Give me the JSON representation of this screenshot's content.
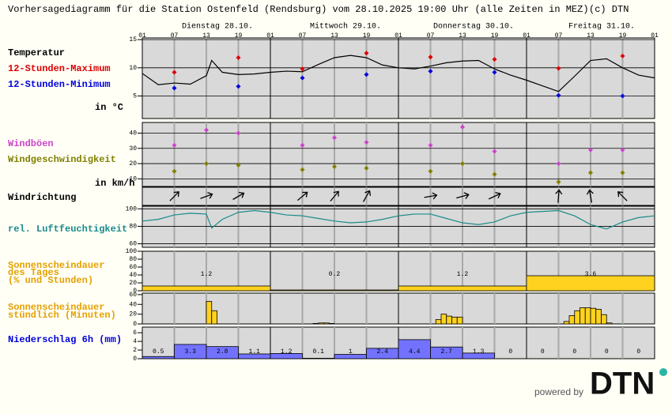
{
  "header": {
    "title": "Vorhersagediagramm für die Station Ostenfeld (Rendsburg) vom 28.10.2025 19:00 Uhr (alle Zeiten in MEZ)",
    "copyright": "(c) DTN"
  },
  "days": [
    "Dienstag 28.10.",
    "Mittwoch 29.10.",
    "Donnerstag 30.10.",
    "Freitag 31.10."
  ],
  "hours": [
    "01",
    "07",
    "13",
    "19"
  ],
  "chart_data": [
    {
      "type": "line",
      "title": "Temperatur",
      "unit_label": "in °C",
      "ylim": [
        1,
        15.3
      ],
      "yticks": [
        5,
        10,
        15
      ],
      "grid": true,
      "series": [
        {
          "color": "#000000",
          "x": [
            0,
            3,
            6,
            9,
            12,
            13,
            15,
            18,
            21,
            24,
            27,
            30,
            33,
            36,
            39,
            42,
            45,
            48,
            51,
            54,
            57,
            60,
            63,
            66,
            69,
            72,
            75,
            78,
            81,
            84,
            87,
            90,
            93,
            96
          ],
          "values": [
            9.0,
            7.0,
            7.3,
            7.1,
            8.6,
            11.3,
            9.2,
            8.8,
            8.9,
            9.2,
            9.4,
            9.3,
            10.6,
            11.8,
            12.2,
            11.8,
            10.5,
            10.0,
            9.8,
            10.3,
            10.9,
            11.2,
            11.3,
            9.8,
            8.7,
            7.8,
            6.8,
            5.8,
            8.5,
            11.3,
            11.6,
            10.0,
            8.7,
            8.2
          ]
        },
        {
          "name": "12-Stunden-Maximum",
          "color": "#dd0000",
          "marker": "diamond",
          "x": [
            6,
            18,
            30,
            42,
            54,
            66,
            78,
            90
          ],
          "values": [
            9.2,
            11.8,
            9.8,
            12.6,
            11.9,
            11.5,
            9.9,
            12.1
          ]
        },
        {
          "name": "12-Stunden-Minimum",
          "color": "#0000dd",
          "marker": "diamond",
          "x": [
            6,
            18,
            30,
            42,
            54,
            66,
            78,
            90
          ],
          "values": [
            6.4,
            6.7,
            8.2,
            8.8,
            9.4,
            9.2,
            5.1,
            5.0
          ]
        }
      ]
    },
    {
      "type": "scatter",
      "unit_label": "in km/h",
      "ylim": [
        5,
        47
      ],
      "yticks": [
        10,
        20,
        30,
        40
      ],
      "grid": true,
      "series": [
        {
          "name": "Windböen",
          "color": "#cc44cc",
          "x": [
            6,
            12,
            18,
            30,
            36,
            42,
            54,
            60,
            66,
            78,
            84,
            90
          ],
          "values": [
            32,
            42,
            40,
            32,
            37,
            34,
            32,
            44,
            28,
            20,
            29,
            29
          ]
        },
        {
          "name": "Windgeschwindigkeit",
          "color": "#808000",
          "x": [
            6,
            12,
            18,
            30,
            36,
            42,
            54,
            60,
            66,
            78,
            84,
            90
          ],
          "values": [
            15,
            20,
            19,
            16,
            18,
            17,
            15,
            20,
            13,
            8,
            14,
            14
          ]
        }
      ]
    },
    {
      "type": "arrows",
      "title": "Windrichtung",
      "x": [
        6,
        12,
        18,
        30,
        36,
        42,
        54,
        60,
        66,
        78,
        84,
        90
      ],
      "values": [
        45,
        70,
        60,
        50,
        40,
        30,
        80,
        75,
        65,
        5,
        350,
        315
      ]
    },
    {
      "type": "line",
      "title": "rel. Luftfeuchtigkeit",
      "color": "#1a8a8a",
      "ylim": [
        56,
        103
      ],
      "yticks": [
        60,
        80,
        100
      ],
      "grid": true,
      "x": [
        0,
        3,
        6,
        9,
        12,
        13,
        15,
        18,
        21,
        24,
        27,
        30,
        33,
        36,
        39,
        42,
        45,
        48,
        51,
        54,
        57,
        60,
        63,
        66,
        69,
        72,
        75,
        78,
        81,
        84,
        87,
        90,
        93,
        96
      ],
      "values": [
        86,
        88,
        93,
        95,
        94,
        78,
        88,
        96,
        98,
        96,
        93,
        92,
        89,
        86,
        84,
        85,
        88,
        92,
        94,
        94,
        89,
        84,
        82,
        85,
        92,
        96,
        97,
        98,
        92,
        82,
        77,
        85,
        90,
        92
      ]
    },
    {
      "type": "bar",
      "title_lines": [
        "Sonnenscheindauer",
        "des Tages",
        "(% und Stunden)"
      ],
      "color": "#ffd21f",
      "ylim": [
        0,
        100
      ],
      "yticks": [
        0,
        20,
        40,
        60,
        80,
        100
      ],
      "x": [
        0,
        24,
        48,
        72
      ],
      "values": [
        12,
        2,
        12,
        38
      ],
      "hours": [
        1.2,
        0.2,
        1.2,
        3.6
      ]
    },
    {
      "type": "bar",
      "title_lines": [
        "Sonnenscheindauer",
        "stündlich (Minuten)"
      ],
      "color": "#ffd21f",
      "ylim": [
        0,
        63
      ],
      "yticks": [
        0,
        20,
        40,
        60
      ],
      "x": [
        12,
        13,
        32,
        33,
        34,
        35,
        55,
        56,
        57,
        58,
        59,
        79,
        80,
        81,
        82,
        83,
        84,
        85,
        86,
        87
      ],
      "values": [
        46,
        27,
        1,
        2,
        2,
        1,
        9,
        20,
        16,
        14,
        14,
        5,
        17,
        27,
        33,
        33,
        32,
        30,
        19,
        2
      ]
    },
    {
      "type": "bar",
      "title": "Niederschlag 6h (mm)",
      "color": "#7272ff",
      "ylim": [
        0,
        7.3
      ],
      "yticks": [
        0,
        2,
        4,
        6
      ],
      "data_labels": true,
      "x": [
        0,
        6,
        12,
        18,
        24,
        30,
        36,
        42,
        48,
        54,
        60,
        66,
        72,
        78,
        84,
        90
      ],
      "values": [
        0.5,
        3.3,
        2.8,
        1.1,
        1.2,
        0.1,
        1,
        2.4,
        4.4,
        2.7,
        1.3,
        0,
        0,
        0,
        0,
        0
      ]
    }
  ],
  "footer": {
    "powered_by": "powered by",
    "logo": "DTN"
  }
}
